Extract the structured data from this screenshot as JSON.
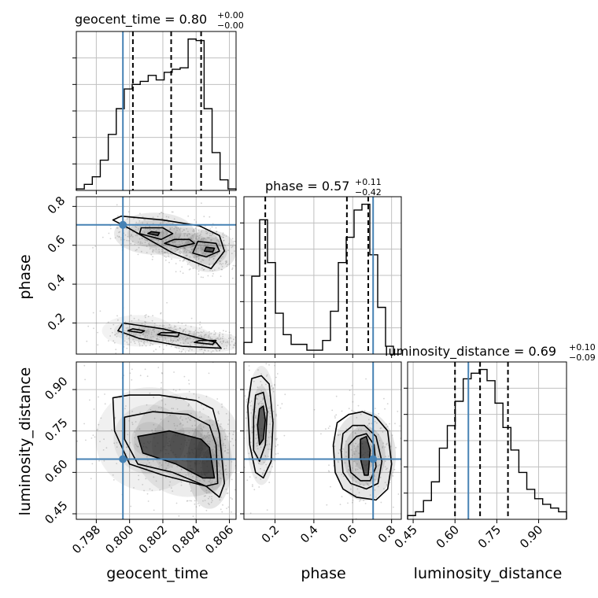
{
  "chart_data": {
    "type": "corner",
    "parameters": [
      "geocent_time",
      "phase",
      "luminosity_distance"
    ],
    "truth": {
      "geocent_time": 0.7996,
      "phase": 0.705,
      "luminosity_distance": 0.648
    },
    "truth_color": "#4682b4",
    "colors": {
      "contour": "#000000",
      "grid": "#c0c0c0",
      "points": "#7f7f7f"
    },
    "titles": {
      "geocent_time": {
        "label": "geocent_time",
        "median": "0.80",
        "plus": "+0.00",
        "minus": "−0.00"
      },
      "phase": {
        "label": "phase",
        "median": "0.57",
        "plus": "+0.11",
        "minus": "−0.42"
      },
      "luminosity_distance": {
        "label": "luminosity_distance",
        "median": "0.69",
        "plus": "+0.10",
        "minus": "−0.09"
      }
    },
    "axes": {
      "geocent_time": {
        "range": [
          0.7968,
          0.8064
        ],
        "ticks": [
          0.798,
          0.8,
          0.802,
          0.804,
          0.806
        ],
        "ticklabels": [
          "0.798",
          "0.800",
          "0.802",
          "0.804",
          "0.806"
        ]
      },
      "phase": {
        "range": [
          0.04,
          0.85
        ],
        "ticks": [
          0.2,
          0.4,
          0.6,
          0.8
        ],
        "ticklabels": [
          "0.2",
          "0.4",
          "0.6",
          "0.8"
        ]
      },
      "luminosity_distance": {
        "range": [
          0.43,
          1.0
        ],
        "ticks": [
          0.45,
          0.6,
          0.75,
          0.9
        ],
        "ticklabels": [
          "0.45",
          "0.60",
          "0.75",
          "0.90"
        ]
      }
    },
    "histograms": {
      "geocent_time": {
        "bin_edges": [
          0.7968,
          0.79728,
          0.79776,
          0.79824,
          0.79872,
          0.7992,
          0.79968,
          0.80016,
          0.80064,
          0.80112,
          0.8016,
          0.80208,
          0.80256,
          0.80304,
          0.80352,
          0.804,
          0.80448,
          0.80496,
          0.80544,
          0.80592,
          0.8064
        ],
        "counts": [
          1,
          4,
          9,
          20,
          37,
          54,
          67,
          70,
          72,
          76,
          73,
          78,
          80,
          81,
          100,
          99,
          54,
          25,
          7,
          1
        ],
        "quantiles": [
          0.8002,
          0.8025,
          0.8043
        ]
      },
      "phase": {
        "bin_edges": [
          0.04,
          0.0805,
          0.121,
          0.1615,
          0.202,
          0.2425,
          0.283,
          0.3235,
          0.364,
          0.4045,
          0.445,
          0.4855,
          0.526,
          0.5665,
          0.607,
          0.6475,
          0.688,
          0.7285,
          0.769,
          0.8095,
          0.85
        ],
        "counts": [
          6,
          40,
          69,
          47,
          21,
          10,
          5,
          5,
          2,
          2,
          7,
          22,
          47,
          60,
          74,
          77,
          51,
          24,
          4,
          0
        ],
        "quantiles": [
          0.15,
          0.57,
          0.68
        ]
      },
      "luminosity_distance": {
        "bin_edges": [
          0.43,
          0.4585,
          0.487,
          0.5155,
          0.544,
          0.5725,
          0.601,
          0.6295,
          0.658,
          0.6865,
          0.715,
          0.7435,
          0.772,
          0.8005,
          0.829,
          0.8575,
          0.886,
          0.9145,
          0.943,
          0.9715,
          1.0
        ],
        "counts": [
          2,
          4,
          10,
          20,
          38,
          50,
          63,
          75,
          78,
          80,
          74,
          62,
          49,
          37,
          25,
          16,
          11,
          8,
          6,
          4
        ],
        "quantiles": [
          0.6,
          0.69,
          0.79
        ]
      }
    },
    "contours": {
      "phase_vs_geocent_time": [
        {
          "level": "outer",
          "x": [
            0.7995,
            0.802,
            0.8042,
            0.8054,
            0.8057,
            0.8049,
            0.8026,
            0.7999,
            0.799
          ],
          "y": [
            0.75,
            0.73,
            0.7,
            0.65,
            0.57,
            0.48,
            0.56,
            0.69,
            0.73
          ]
        },
        {
          "level": "outer",
          "x": [
            0.7996,
            0.802,
            0.8052,
            0.8055,
            0.8032,
            0.8006,
            0.7993
          ],
          "y": [
            0.2,
            0.17,
            0.1,
            0.07,
            0.08,
            0.12,
            0.16
          ]
        },
        {
          "level": "mid",
          "x": [
            0.8007,
            0.802,
            0.8026,
            0.8019,
            0.8006
          ],
          "y": [
            0.69,
            0.69,
            0.66,
            0.63,
            0.66
          ]
        },
        {
          "level": "mid",
          "x": [
            0.8027,
            0.8036,
            0.8039,
            0.8029,
            0.8021
          ],
          "y": [
            0.63,
            0.63,
            0.61,
            0.59,
            0.61
          ]
        },
        {
          "level": "mid",
          "x": [
            0.8041,
            0.8052,
            0.8054,
            0.8046,
            0.8038
          ],
          "y": [
            0.62,
            0.61,
            0.57,
            0.54,
            0.56
          ]
        },
        {
          "level": "mid",
          "x": [
            0.8002,
            0.8009,
            0.8007,
            0.7999
          ],
          "y": [
            0.17,
            0.16,
            0.15,
            0.16
          ]
        },
        {
          "level": "mid",
          "x": [
            0.8019,
            0.803,
            0.8029,
            0.8017
          ],
          "y": [
            0.15,
            0.15,
            0.13,
            0.14
          ]
        },
        {
          "level": "mid",
          "x": [
            0.8042,
            0.8052,
            0.805,
            0.8039
          ],
          "y": [
            0.11,
            0.11,
            0.09,
            0.1
          ]
        },
        {
          "level": "inner",
          "x": [
            0.8013,
            0.8018,
            0.8017,
            0.8011
          ],
          "y": [
            0.67,
            0.665,
            0.65,
            0.66
          ]
        },
        {
          "level": "inner",
          "x": [
            0.8046,
            0.8051,
            0.805,
            0.8045
          ],
          "y": [
            0.59,
            0.585,
            0.565,
            0.57
          ]
        }
      ],
      "luminosity_distance_vs_geocent_time": [
        {
          "level": "outer",
          "x": [
            0.799,
            0.8,
            0.8018,
            0.804,
            0.805,
            0.8054,
            0.8057,
            0.8054,
            0.8046,
            0.802,
            0.8,
            0.7991
          ],
          "y": [
            0.87,
            0.88,
            0.88,
            0.86,
            0.83,
            0.74,
            0.56,
            0.51,
            0.55,
            0.59,
            0.63,
            0.75
          ]
        },
        {
          "level": "mid",
          "x": [
            0.7997,
            0.8014,
            0.8035,
            0.8048,
            0.8052,
            0.8053,
            0.8046,
            0.8026,
            0.8005,
            0.7997
          ],
          "y": [
            0.8,
            0.82,
            0.81,
            0.77,
            0.7,
            0.56,
            0.55,
            0.6,
            0.63,
            0.72
          ]
        },
        {
          "level": "inner",
          "x": [
            0.8005,
            0.8024,
            0.8043,
            0.8048,
            0.8051,
            0.8044,
            0.8028,
            0.8008
          ],
          "y": [
            0.73,
            0.75,
            0.72,
            0.69,
            0.58,
            0.58,
            0.63,
            0.67
          ]
        }
      ],
      "luminosity_distance_vs_phase": [
        {
          "level": "outer",
          "x": [
            0.08,
            0.13,
            0.17,
            0.19,
            0.18,
            0.14,
            0.1,
            0.07,
            0.06
          ],
          "y": [
            0.94,
            0.95,
            0.92,
            0.78,
            0.64,
            0.58,
            0.6,
            0.7,
            0.84
          ]
        },
        {
          "level": "mid",
          "x": [
            0.1,
            0.14,
            0.16,
            0.15,
            0.12,
            0.09,
            0.09
          ],
          "y": [
            0.88,
            0.89,
            0.82,
            0.7,
            0.64,
            0.68,
            0.8
          ]
        },
        {
          "level": "inner",
          "x": [
            0.12,
            0.14,
            0.15,
            0.14,
            0.12,
            0.11
          ],
          "y": [
            0.83,
            0.84,
            0.79,
            0.72,
            0.7,
            0.77
          ]
        },
        {
          "level": "outer",
          "x": [
            0.52,
            0.58,
            0.65,
            0.72,
            0.78,
            0.8,
            0.78,
            0.72,
            0.62,
            0.55,
            0.51,
            0.5
          ],
          "y": [
            0.78,
            0.81,
            0.82,
            0.8,
            0.75,
            0.63,
            0.54,
            0.5,
            0.51,
            0.54,
            0.6,
            0.7
          ]
        },
        {
          "level": "mid",
          "x": [
            0.55,
            0.6,
            0.66,
            0.72,
            0.75,
            0.73,
            0.67,
            0.59,
            0.55,
            0.54
          ],
          "y": [
            0.74,
            0.77,
            0.77,
            0.73,
            0.64,
            0.56,
            0.54,
            0.56,
            0.6,
            0.68
          ]
        },
        {
          "level": "mid2",
          "x": [
            0.58,
            0.62,
            0.67,
            0.71,
            0.72,
            0.69,
            0.64,
            0.59,
            0.58
          ],
          "y": [
            0.7,
            0.73,
            0.74,
            0.7,
            0.62,
            0.57,
            0.57,
            0.6,
            0.65
          ]
        },
        {
          "level": "inner",
          "x": [
            0.64,
            0.67,
            0.69,
            0.68,
            0.66,
            0.64
          ],
          "y": [
            0.72,
            0.73,
            0.68,
            0.59,
            0.59,
            0.65
          ]
        }
      ]
    },
    "density_blobs": {
      "phase_vs_geocent_time": [
        {
          "x": 0.8015,
          "y": 0.66,
          "sx": 0.0009,
          "sy": 0.04,
          "w": 0.9
        },
        {
          "x": 0.8033,
          "y": 0.61,
          "sx": 0.0008,
          "sy": 0.03,
          "w": 0.7
        },
        {
          "x": 0.8048,
          "y": 0.57,
          "sx": 0.0006,
          "sy": 0.04,
          "w": 0.9
        },
        {
          "x": 0.8005,
          "y": 0.16,
          "sx": 0.0008,
          "sy": 0.03,
          "w": 0.5
        },
        {
          "x": 0.8024,
          "y": 0.14,
          "sx": 0.0009,
          "sy": 0.02,
          "w": 0.6
        },
        {
          "x": 0.8046,
          "y": 0.1,
          "sx": 0.0008,
          "sy": 0.02,
          "w": 0.6
        }
      ],
      "luminosity_distance_vs_geocent_time": [
        {
          "x": 0.8012,
          "y": 0.72,
          "sx": 0.0012,
          "sy": 0.07,
          "w": 0.6
        },
        {
          "x": 0.8035,
          "y": 0.7,
          "sx": 0.0012,
          "sy": 0.07,
          "w": 0.7
        },
        {
          "x": 0.8048,
          "y": 0.63,
          "sx": 0.0005,
          "sy": 0.06,
          "w": 1.0
        }
      ],
      "luminosity_distance_vs_phase": [
        {
          "x": 0.13,
          "y": 0.77,
          "sx": 0.03,
          "sy": 0.08,
          "w": 0.8
        },
        {
          "x": 0.66,
          "y": 0.66,
          "sx": 0.06,
          "sy": 0.06,
          "w": 1.0
        }
      ]
    }
  }
}
